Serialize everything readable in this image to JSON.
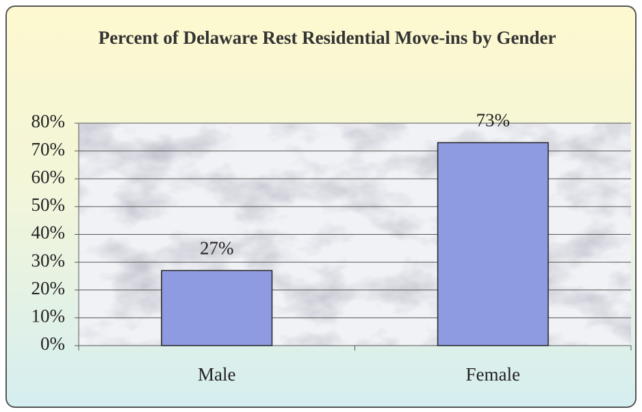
{
  "chart_data": {
    "type": "bar",
    "title": "Percent of Delaware Rest Residential Move-ins by Gender",
    "categories": [
      "Male",
      "Female"
    ],
    "values": [
      27,
      73
    ],
    "value_labels": [
      "27%",
      "73%"
    ],
    "color": "#8e9be0",
    "ylim": [
      0,
      80
    ],
    "yticks": [
      {
        "value": 0,
        "label": "0%"
      },
      {
        "value": 10,
        "label": "10%"
      },
      {
        "value": 20,
        "label": "20%"
      },
      {
        "value": 30,
        "label": "30%"
      },
      {
        "value": 40,
        "label": "40%"
      },
      {
        "value": 50,
        "label": "50%"
      },
      {
        "value": 60,
        "label": "60%"
      },
      {
        "value": 70,
        "label": "70%"
      },
      {
        "value": 80,
        "label": "80%"
      }
    ],
    "grid": true
  }
}
